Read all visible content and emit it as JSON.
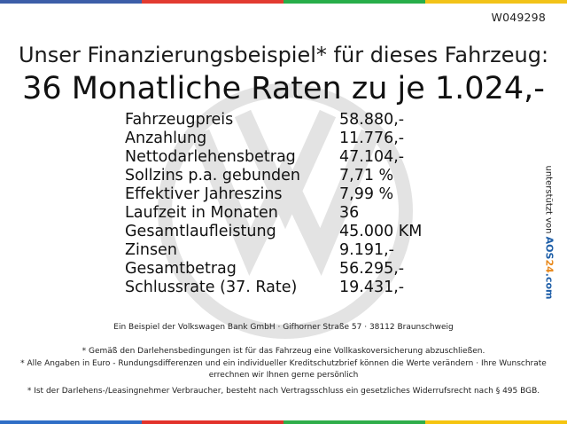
{
  "code": "W049298",
  "headline": {
    "line1": "Unser Finanzierungsbeispiel* für dieses Fahrzeug:",
    "line2": "36 Monatliche Raten zu je 1.024,-"
  },
  "rows": [
    {
      "label": "Fahrzeugpreis",
      "value": "58.880,-"
    },
    {
      "label": "Anzahlung",
      "value": "11.776,-"
    },
    {
      "label": "Nettodarlehensbetrag",
      "value": "47.104,-"
    },
    {
      "label": "Sollzins p.a. gebunden",
      "value": "7,71 %"
    },
    {
      "label": "Effektiver Jahreszins",
      "value": "7,99 %"
    },
    {
      "label": "Laufzeit in Monaten",
      "value": "36"
    },
    {
      "label": "Gesamtlaufleistung",
      "value": "45.000 KM"
    },
    {
      "label": "Zinsen",
      "value": "9.191,-"
    },
    {
      "label": "Gesamtbetrag",
      "value": "56.295,-"
    },
    {
      "label": "Schlussrate (37. Rate)",
      "value": "19.431,-"
    }
  ],
  "side": {
    "prefix": "unterstützt von",
    "brand_a": "AOS",
    "brand_b": "24",
    "brand_c": ".com"
  },
  "footnotes": {
    "lender": "Ein Beispiel der Volkswagen Bank GmbH · Gifhorner Straße 57 · 38112 Braunschweig",
    "note1": "* Gemäß den Darlehensbedingungen ist für das Fahrzeug eine Vollkaskoversicherung abzuschließen.",
    "note2": "* Alle Angaben in Euro - Rundungsdifferenzen und ein individueller Kreditschutzbrief können die Werte verändern · Ihre Wunschrate errechnen wir Ihnen gerne persönlich",
    "note3": "* Ist der Darlehens-/Leasingnehmer Verbraucher, besteht nach Vertragsschluss ein gesetzliches Widerrufsrecht nach § 495 BGB."
  },
  "watermark_icon": "vw-logo-icon",
  "colors": {
    "watermark": "#e4e4e4",
    "bar_top": [
      "#3c5ea8",
      "#e23b30",
      "#27ae4a",
      "#f2c318"
    ],
    "bar_bottom": [
      "#2f6ec6",
      "#e2322b",
      "#2fae4a",
      "#f5c40f"
    ]
  }
}
